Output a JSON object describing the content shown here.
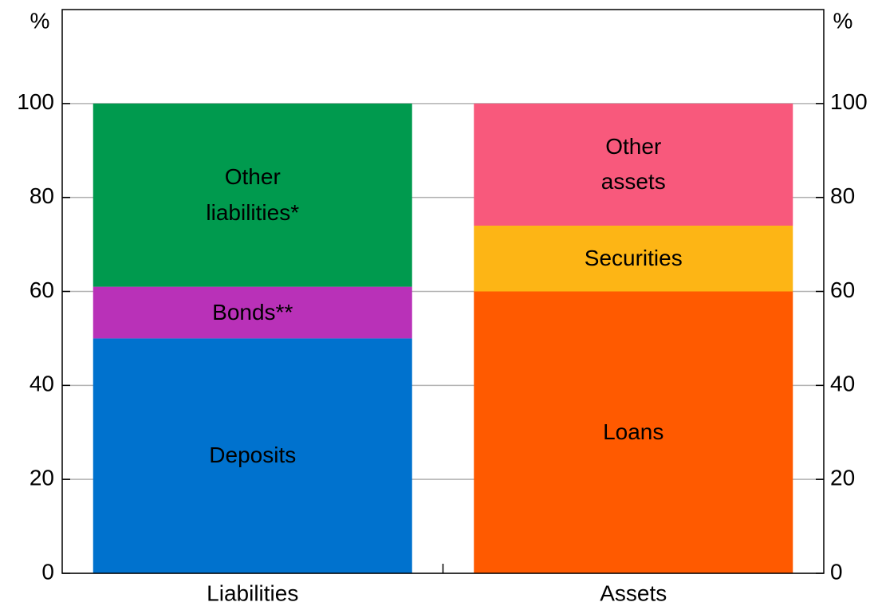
{
  "chart_data": {
    "type": "stacked_bar",
    "categories": [
      "Liabilities",
      "Assets"
    ],
    "series": [
      {
        "name": "Deposits",
        "color": "#0072ce",
        "values": [
          50,
          null
        ]
      },
      {
        "name": "Bonds**",
        "color": "#b931b8",
        "values": [
          11,
          null
        ]
      },
      {
        "name": "Other liabilities*",
        "color": "#009a4e",
        "values": [
          39,
          null
        ]
      },
      {
        "name": "Loans",
        "color": "#ff5a00",
        "values": [
          null,
          60
        ]
      },
      {
        "name": "Securities",
        "color": "#fdb515",
        "values": [
          null,
          14
        ]
      },
      {
        "name": "Other assets",
        "color": "#f8597c",
        "values": [
          null,
          26
        ]
      }
    ],
    "ylabel": "%",
    "y2label": "%",
    "ylim": [
      0,
      120
    ],
    "yticks": [
      0,
      20,
      40,
      60,
      80,
      100
    ],
    "y2lim": [
      0,
      120
    ],
    "y2ticks": [
      0,
      20,
      40,
      60,
      80,
      100
    ],
    "grid": true
  }
}
